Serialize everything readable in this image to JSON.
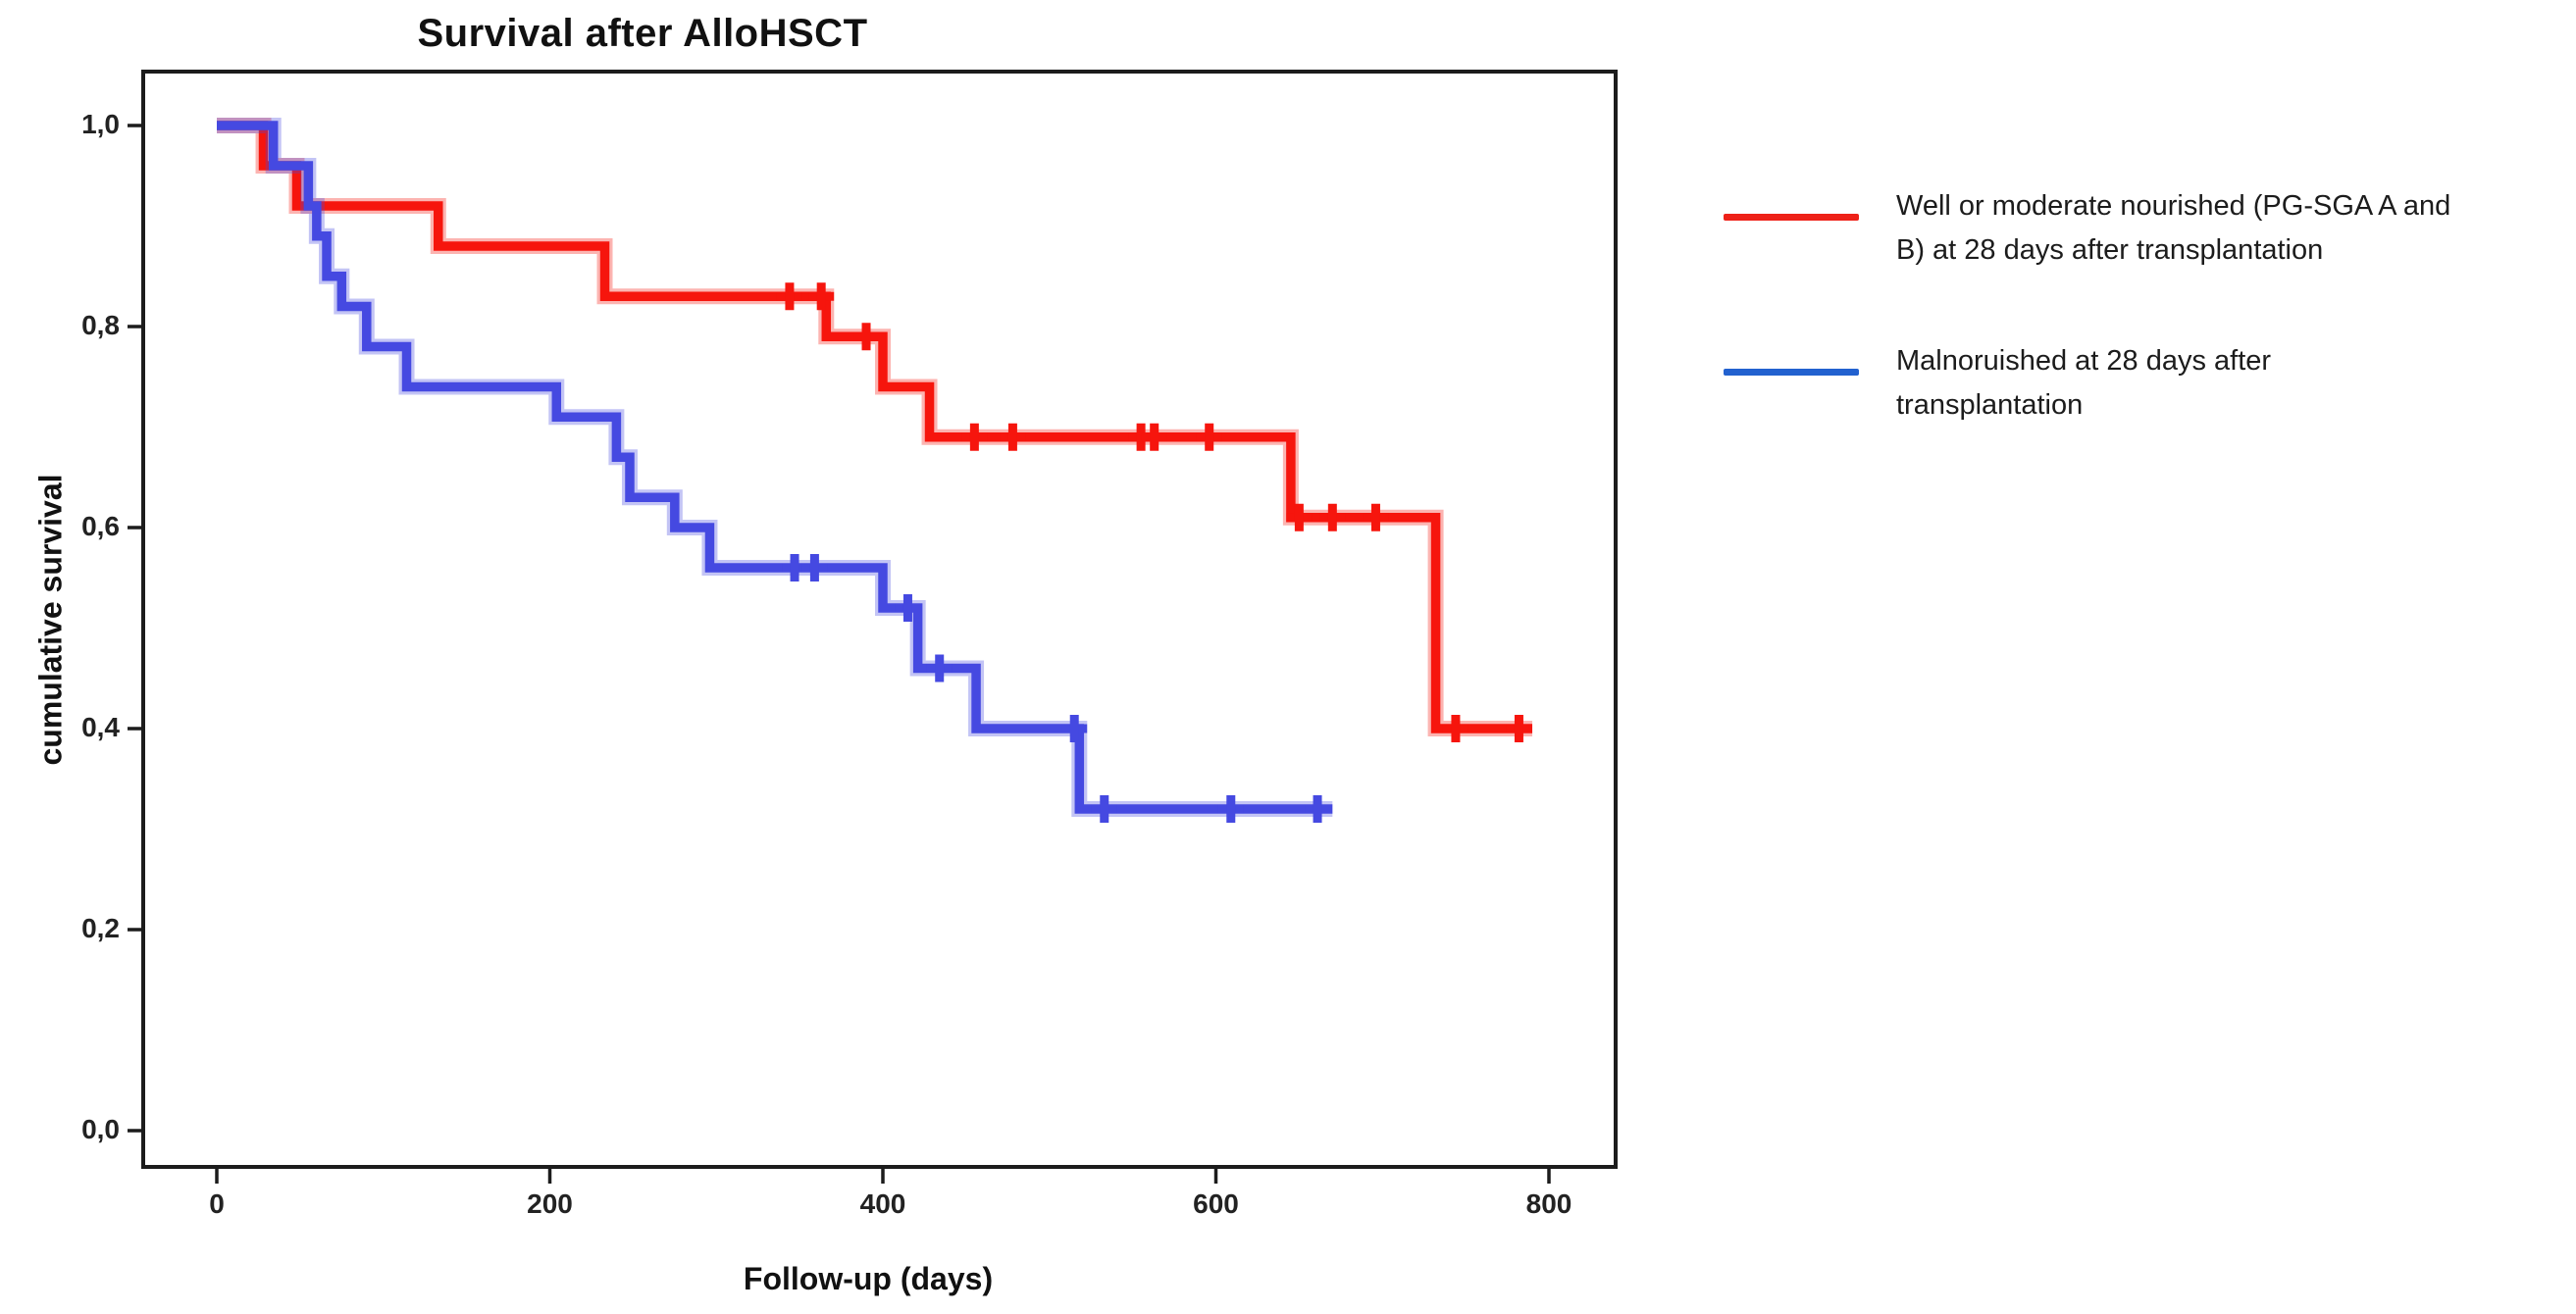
{
  "figure": {
    "title": "Survival after AlloHSCT"
  },
  "axes": {
    "x": {
      "title": "Follow-up (days)",
      "tick_labels": [
        "0",
        "200",
        "400",
        "600",
        "800"
      ],
      "tick_values": [
        0,
        200,
        400,
        600,
        800
      ]
    },
    "y": {
      "title": "cumulative survival",
      "tick_labels": [
        "1,0",
        "0,8",
        "0,6",
        "0,4",
        "0,2",
        "0,0"
      ],
      "tick_values": [
        1.0,
        0.8,
        0.6,
        0.4,
        0.2,
        0.0
      ]
    }
  },
  "legend": {
    "entries": [
      {
        "series": "well-or-moderate-nourished",
        "color": "#ee2118",
        "lines": [
          "Well or moderate nourished  (PG-SGA A and",
          "B) at 28 days after transplantation"
        ]
      },
      {
        "series": "malnourished",
        "color": "#2261cf",
        "lines": [
          "Malnoruished at 28 days after",
          "transplantation"
        ]
      }
    ]
  },
  "chart_data": {
    "type": "line",
    "subtype": "kaplan-meier-step-curve",
    "title": "Survival after AlloHSCT",
    "xlabel": "Follow-up (days)",
    "ylabel": "cumulative survival",
    "x_ticks": [
      0,
      200,
      400,
      600,
      800
    ],
    "y_ticks": [
      0.0,
      0.2,
      0.4,
      0.6,
      0.8,
      1.0
    ],
    "grid": false,
    "legend_position": "right-outside",
    "series": [
      {
        "name": "Well or moderate nourished (PG-SGA A and B) at 28 days after transplantation",
        "color": "#f6150d",
        "steps_day_survival": [
          [
            0,
            1.0
          ],
          [
            28,
            0.96
          ],
          [
            48,
            0.92
          ],
          [
            133,
            0.88
          ],
          [
            233,
            0.83
          ],
          [
            366,
            0.79
          ],
          [
            400,
            0.74
          ],
          [
            428,
            0.69
          ],
          [
            645,
            0.61
          ],
          [
            732,
            0.4
          ]
        ],
        "end_day": 790,
        "censor_marks_day_survival": [
          [
            344,
            0.83
          ],
          [
            363,
            0.83
          ],
          [
            390,
            0.79
          ],
          [
            455,
            0.69
          ],
          [
            478,
            0.69
          ],
          [
            555,
            0.69
          ],
          [
            563,
            0.69
          ],
          [
            596,
            0.69
          ],
          [
            650,
            0.61
          ],
          [
            670,
            0.61
          ],
          [
            696,
            0.61
          ],
          [
            744,
            0.4
          ],
          [
            782,
            0.4
          ]
        ]
      },
      {
        "name": "Malnoruished at 28 days after transplantation",
        "color": "#4549e1",
        "steps_day_survival": [
          [
            0,
            1.0
          ],
          [
            34,
            0.96
          ],
          [
            55,
            0.92
          ],
          [
            60,
            0.89
          ],
          [
            66,
            0.85
          ],
          [
            75,
            0.82
          ],
          [
            90,
            0.78
          ],
          [
            114,
            0.74
          ],
          [
            204,
            0.71
          ],
          [
            240,
            0.67
          ],
          [
            248,
            0.63
          ],
          [
            275,
            0.6
          ],
          [
            296,
            0.56
          ],
          [
            400,
            0.52
          ],
          [
            421,
            0.46
          ],
          [
            456,
            0.4
          ],
          [
            518,
            0.32
          ]
        ],
        "end_day": 670,
        "censor_marks_day_survival": [
          [
            347,
            0.56
          ],
          [
            359,
            0.56
          ],
          [
            415,
            0.52
          ],
          [
            434,
            0.46
          ],
          [
            515,
            0.4
          ],
          [
            533,
            0.32
          ],
          [
            609,
            0.32
          ],
          [
            661,
            0.32
          ]
        ]
      }
    ]
  }
}
